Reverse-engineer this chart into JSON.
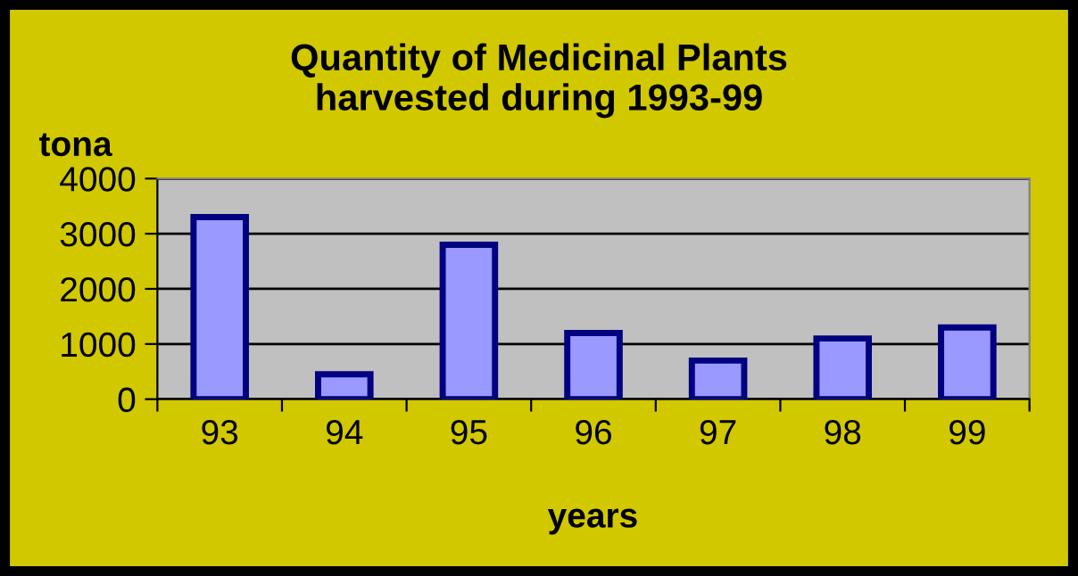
{
  "chart_data": {
    "type": "bar",
    "title": "Quantity of Medicinal Plants\nharvested during 1993-99",
    "ylabel": "tona",
    "xlabel": "years",
    "categories": [
      "93",
      "94",
      "95",
      "96",
      "97",
      "98",
      "99"
    ],
    "values": [
      3300,
      450,
      2800,
      1200,
      700,
      1100,
      1300
    ],
    "color": "#9999ff",
    "ylim": [
      0,
      4000
    ],
    "yticks": [
      0,
      1000,
      2000,
      3000,
      4000
    ],
    "grid": "y",
    "legend": false
  }
}
